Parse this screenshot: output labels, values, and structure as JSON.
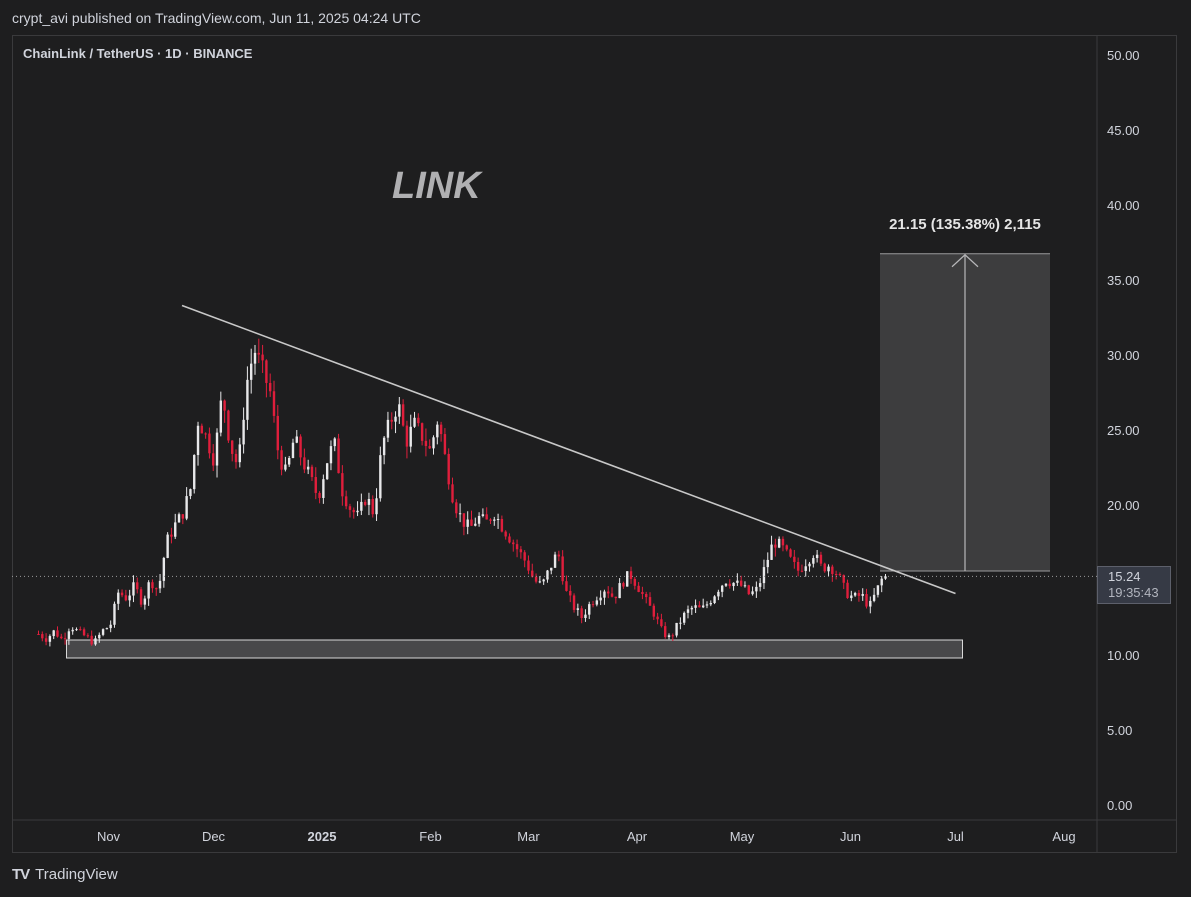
{
  "header": {
    "published": "crypt_avi published on TradingView.com, Jun 11, 2025 04:24 UTC"
  },
  "symbol": {
    "title": "ChainLink / TetherUS · 1D · BINANCE"
  },
  "watermark": "LINK",
  "measure": {
    "label": "21.15 (135.38%) 2,115",
    "from": 15.6,
    "to": 36.75
  },
  "price_tag": {
    "price": "15.24",
    "countdown": "19:35:43"
  },
  "footer": {
    "brand": "TradingView",
    "logo": "TV"
  },
  "colors": {
    "bg": "#1e1e1f",
    "up": "#e8e8ea",
    "down": "#e01e3c",
    "trend": "#c8c8c8",
    "support": "#6b6b6d"
  },
  "chart_data": {
    "type": "candlestick",
    "title": "ChainLink / TetherUS · 1D · BINANCE",
    "y_ticks": [
      "50.00",
      "45.00",
      "40.00",
      "35.00",
      "30.00",
      "25.00",
      "20.00",
      "15.00",
      "10.00",
      "5.00",
      "0.00"
    ],
    "ylim": [
      0,
      50
    ],
    "x_ticks": [
      {
        "label": "Nov",
        "bold": false
      },
      {
        "label": "Dec",
        "bold": false
      },
      {
        "label": "2025",
        "bold": true
      },
      {
        "label": "Feb",
        "bold": false
      },
      {
        "label": "Mar",
        "bold": false
      },
      {
        "label": "Apr",
        "bold": false
      },
      {
        "label": "May",
        "bold": false
      },
      {
        "label": "Jun",
        "bold": false
      },
      {
        "label": "Jul",
        "bold": false
      },
      {
        "label": "Aug",
        "bold": false
      }
    ],
    "close_path": [
      11.4,
      11.1,
      11.6,
      11.0,
      12.0,
      11.5,
      11.2,
      10.8,
      11.6,
      12.0,
      14.2,
      13.8,
      14.6,
      13.5,
      15.0,
      14.3,
      17.5,
      18.6,
      19.4,
      21.0,
      25.8,
      24.5,
      23.0,
      27.5,
      24.0,
      22.5,
      28.0,
      30.4,
      29.0,
      27.5,
      23.5,
      22.0,
      24.5,
      23.0,
      21.8,
      20.5,
      22.8,
      24.2,
      21.0,
      19.8,
      19.2,
      20.6,
      19.4,
      24.0,
      25.5,
      26.8,
      24.2,
      25.4,
      24.6,
      23.6,
      25.8,
      22.8,
      20.2,
      19.0,
      18.4,
      19.2,
      18.8,
      19.5,
      18.6,
      17.8,
      17.0,
      16.2,
      15.0,
      14.6,
      15.8,
      16.9,
      14.2,
      13.2,
      12.5,
      13.4,
      14.0,
      14.5,
      13.8,
      14.8,
      15.4,
      14.6,
      13.6,
      12.8,
      11.6,
      11.1,
      12.0,
      12.8,
      13.2,
      13.0,
      13.6,
      14.4,
      15.0,
      14.8,
      14.6,
      14.0,
      14.4,
      16.0,
      17.6,
      17.2,
      16.4,
      15.6,
      16.2,
      16.8,
      15.8,
      16.0,
      15.4,
      14.2,
      13.8,
      14.0,
      13.2,
      14.4,
      15.6
    ],
    "candles": {
      "count": 224,
      "first_date": "Oct 12, 2024",
      "last_date": "Jun 11, 2025"
    },
    "trendline": {
      "start": {
        "date": "Nov 22, 2024",
        "price": 33.3
      },
      "end": {
        "date": "Jul 1, 2025",
        "price": 14.1
      }
    },
    "support_zone": {
      "from_date": "Oct 20, 2024",
      "to_date": "Jul 3, 2025",
      "low": 9.8,
      "high": 11.0
    },
    "last_price": 15.24
  }
}
